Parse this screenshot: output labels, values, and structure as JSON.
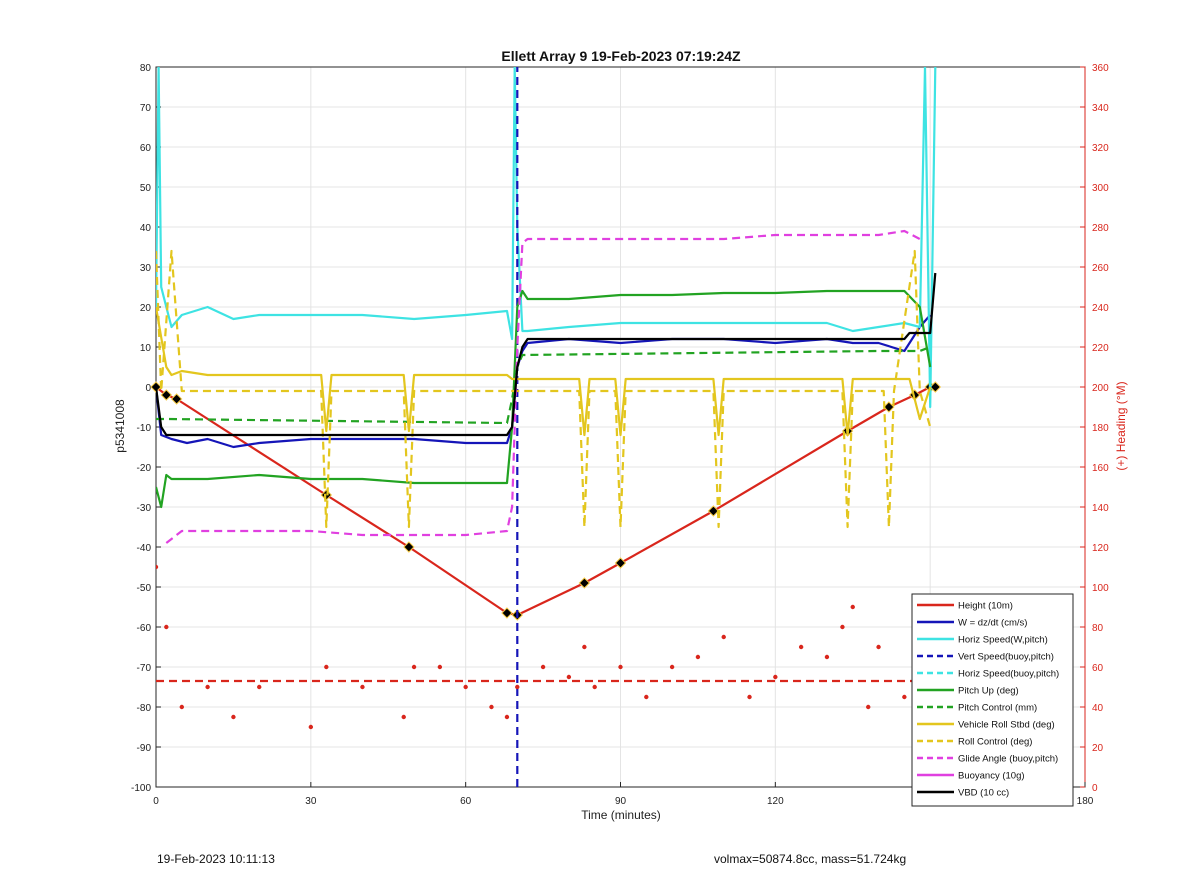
{
  "footer": {
    "timestamp": "19-Feb-2023 10:11:13",
    "info": "volmax=50874.8cc, mass=51.724kg"
  },
  "chart_data": {
    "type": "line",
    "title": "Ellett Array 9 19-Feb-2023 07:19:24Z",
    "xlabel": "Time (minutes)",
    "ylabel": "p5341008",
    "y2label": "(+) Heading (°M)",
    "xlim": [
      0,
      180
    ],
    "ylim": [
      -100,
      80
    ],
    "y2lim": [
      0,
      360
    ],
    "xticks": [
      0,
      30,
      60,
      90,
      120,
      150,
      180
    ],
    "yticks": [
      -100,
      -90,
      -80,
      -70,
      -60,
      -50,
      -40,
      -30,
      -20,
      -10,
      0,
      10,
      20,
      30,
      40,
      50,
      60,
      70,
      80
    ],
    "y2ticks": [
      0,
      20,
      40,
      60,
      80,
      100,
      120,
      140,
      160,
      180,
      200,
      220,
      240,
      260,
      280,
      300,
      320,
      340,
      360
    ],
    "grid": true,
    "legend_position": "bottom-right",
    "series": [
      {
        "name": "Height (10m)",
        "color": "#d9261c",
        "style": "solid",
        "marker": "diamond",
        "x": [
          0,
          2,
          4,
          33,
          49,
          68,
          70,
          83,
          90,
          108,
          134,
          142,
          147,
          150,
          151
        ],
        "y": [
          0,
          -2,
          -3,
          -27,
          -40,
          -56.5,
          -57,
          -49,
          -44,
          -31,
          -11,
          -5,
          -2,
          0,
          0
        ]
      },
      {
        "name": "W = dz/dt (cm/s)",
        "color": "#1515b8",
        "style": "solid",
        "x": [
          0,
          1,
          3,
          6,
          10,
          15,
          20,
          30,
          40,
          50,
          60,
          68,
          69,
          70,
          71,
          72,
          80,
          90,
          100,
          110,
          120,
          130,
          135,
          140,
          145,
          148,
          150
        ],
        "y": [
          0,
          -12,
          -13,
          -14,
          -13,
          -15,
          -14,
          -13,
          -13,
          -13,
          -14,
          -14,
          -10,
          5,
          9,
          11,
          12,
          11,
          12,
          12,
          11,
          12,
          11,
          11,
          9,
          15,
          18
        ]
      },
      {
        "name": "Horiz Speed(W,pitch)",
        "color": "#3ee3e3",
        "style": "solid",
        "x": [
          0,
          0.5,
          1,
          2,
          3,
          5,
          10,
          15,
          20,
          30,
          40,
          50,
          60,
          68,
          69,
          69.5,
          70,
          71,
          72,
          80,
          90,
          100,
          110,
          120,
          130,
          135,
          140,
          145,
          148,
          149,
          150,
          151
        ],
        "y": [
          20,
          80,
          25,
          20,
          15,
          18,
          20,
          17,
          18,
          18,
          18,
          17,
          18,
          19,
          12,
          80,
          40,
          14,
          14,
          15,
          16,
          16,
          16,
          16,
          16,
          14,
          15,
          16,
          15,
          80,
          -5,
          80
        ]
      },
      {
        "name": "Vert Speed(buoy,pitch)",
        "color": "#1515b8",
        "style": "dashed",
        "x": [
          70,
          70
        ],
        "y": [
          -100,
          80
        ]
      },
      {
        "name": "Horiz Speed(buoy,pitch)",
        "color": "#3ee3e3",
        "style": "dashed",
        "x": [],
        "y": []
      },
      {
        "name": "Pitch Up (deg)",
        "color": "#22a322",
        "style": "solid",
        "x": [
          0,
          1,
          2,
          3,
          10,
          20,
          30,
          40,
          50,
          60,
          68,
          69,
          70,
          71,
          72,
          80,
          90,
          100,
          110,
          120,
          130,
          140,
          145,
          148,
          150
        ],
        "y": [
          -25,
          -30,
          -22,
          -23,
          -23,
          -22,
          -23,
          -23,
          -24,
          -24,
          -24,
          -10,
          20,
          24,
          22,
          22,
          23,
          23,
          23.5,
          23.5,
          24,
          24,
          24,
          20,
          5
        ]
      },
      {
        "name": "Pitch Control (mm)",
        "color": "#22a322",
        "style": "dashed",
        "x": [
          0,
          2,
          68,
          69,
          70,
          71,
          140,
          148,
          150
        ],
        "y": [
          -8,
          -8,
          -9,
          -3,
          5,
          8,
          9,
          9,
          10
        ]
      },
      {
        "name": "Vehicle Roll Stbd (deg)",
        "color": "#e3c61e",
        "style": "solid",
        "x": [
          0,
          2,
          3,
          5,
          10,
          20,
          32,
          33,
          34,
          48,
          49,
          50,
          68,
          69,
          70,
          80,
          82,
          83,
          84,
          89,
          90,
          91,
          108,
          109,
          110,
          133,
          134,
          135,
          140,
          146,
          148,
          150
        ],
        "y": [
          20,
          5,
          3,
          4,
          3,
          3,
          3,
          -11,
          3,
          3,
          -11,
          3,
          3,
          2,
          2,
          2,
          2,
          -12,
          2,
          2,
          -12,
          2,
          2,
          -12,
          2,
          2,
          -12,
          2,
          2,
          2,
          -8,
          0
        ]
      },
      {
        "name": "Roll Control (deg)",
        "color": "#e3c61e",
        "style": "dashed",
        "x": [
          0,
          1,
          3,
          5,
          10,
          32,
          33,
          34,
          48,
          49,
          50,
          82,
          83,
          84,
          89,
          90,
          91,
          108,
          109,
          110,
          133,
          134,
          135,
          141,
          142,
          143,
          147,
          148,
          150
        ],
        "y": [
          34,
          -1,
          34,
          -1,
          -1,
          -1,
          -35,
          -1,
          -1,
          -35,
          -1,
          -1,
          -35,
          -1,
          -1,
          -35,
          -1,
          -1,
          -35,
          -1,
          -1,
          -35,
          -1,
          -1,
          -35,
          -1,
          34,
          -1,
          -10
        ]
      },
      {
        "name": "Glide Angle (buoy,pitch)",
        "color": "#e040e0",
        "style": "dashed",
        "x": [
          2,
          5,
          10,
          20,
          30,
          40,
          50,
          60,
          68,
          69,
          70,
          71,
          72,
          80,
          90,
          100,
          110,
          120,
          130,
          140,
          145,
          148
        ],
        "y": [
          -39,
          -36,
          -36,
          -36,
          -36,
          -37,
          -37,
          -37,
          -36,
          -30,
          10,
          36,
          37,
          37,
          37,
          37,
          37,
          38,
          38,
          38,
          39,
          37
        ]
      },
      {
        "name": "Buoyancy (10g)",
        "color": "#e040e0",
        "style": "solid",
        "x": [],
        "y": []
      },
      {
        "name": "VBD (10 cc)",
        "color": "#000000",
        "style": "solid",
        "x": [
          0,
          1,
          2,
          68,
          69,
          70,
          71,
          72,
          100,
          145,
          146,
          150,
          151
        ],
        "y": [
          0,
          -10,
          -12,
          -12,
          -10,
          5,
          10,
          12,
          12,
          12,
          13.5,
          13.5,
          28.5
        ]
      },
      {
        "name": "Heading (°M)",
        "axis": "right",
        "color": "#d9261c",
        "style": "dotted",
        "x": [
          0,
          2,
          5,
          10,
          15,
          20,
          30,
          33,
          40,
          48,
          50,
          55,
          60,
          65,
          68,
          70,
          75,
          80,
          83,
          85,
          90,
          95,
          100,
          105,
          110,
          115,
          120,
          125,
          130,
          133,
          135,
          138,
          140,
          145,
          148,
          150
        ],
        "y": [
          110,
          80,
          40,
          50,
          35,
          50,
          30,
          60,
          50,
          35,
          60,
          60,
          50,
          40,
          35,
          50,
          60,
          55,
          70,
          50,
          60,
          45,
          60,
          65,
          75,
          45,
          55,
          70,
          65,
          80,
          90,
          40,
          70,
          45,
          50,
          45
        ]
      },
      {
        "name": "Heading reference",
        "axis": "right",
        "color": "#d9261c",
        "style": "dashed",
        "x": [
          0,
          150
        ],
        "y": [
          53,
          53
        ]
      }
    ]
  }
}
